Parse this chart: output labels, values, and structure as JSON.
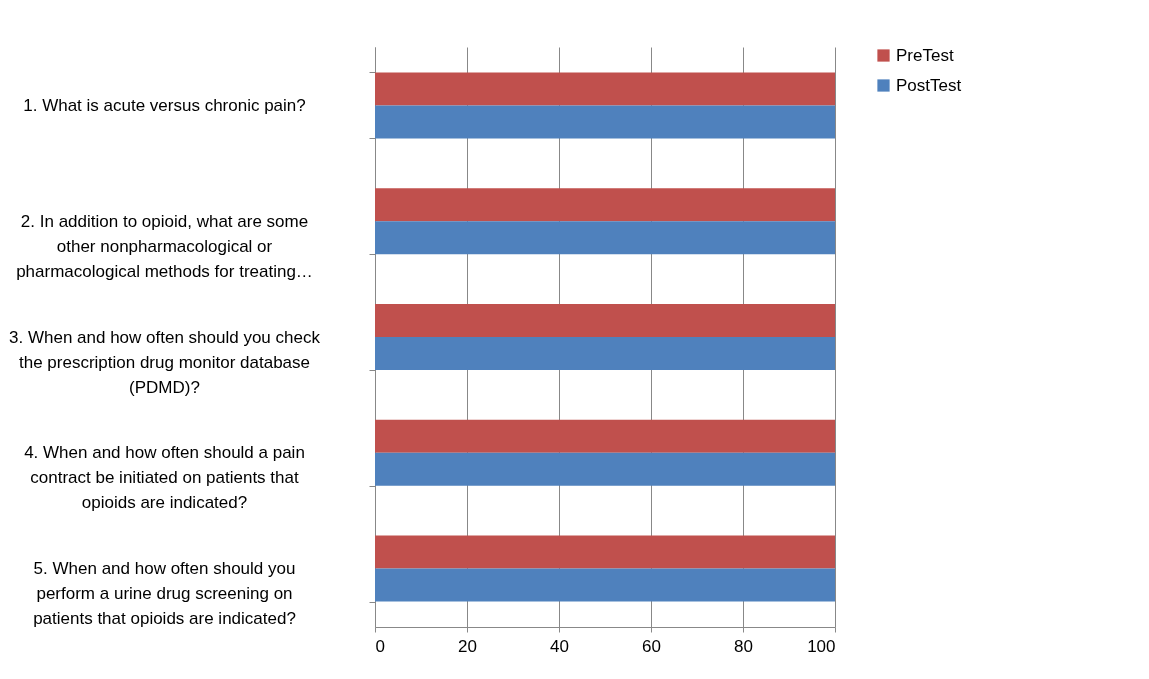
{
  "chart_data": {
    "type": "bar",
    "orientation": "horizontal",
    "categories": [
      "1. What is acute versus chronic pain?",
      "2. In addition to opioid, what are some other nonpharmacological or pharmacological methods for treating…",
      "3. When and how often should you check the prescription drug monitor database (PDMD)?",
      "4. When and how often should a pain contract be initiated on patients that opioids are indicated?",
      "5. When and how often should you perform a urine drug screening on patients that opioids are indicated?"
    ],
    "series": [
      {
        "name": "PreTest",
        "color": "#c0504d",
        "values": [
          100,
          100,
          100,
          100,
          100
        ]
      },
      {
        "name": "PostTest",
        "color": "#4f81bd",
        "values": [
          100,
          100,
          100,
          100,
          100
        ]
      }
    ],
    "xlim": [
      0,
      100
    ],
    "xticks": [
      0,
      20,
      40,
      60,
      80,
      100
    ],
    "grid": "x",
    "legend": "right"
  }
}
